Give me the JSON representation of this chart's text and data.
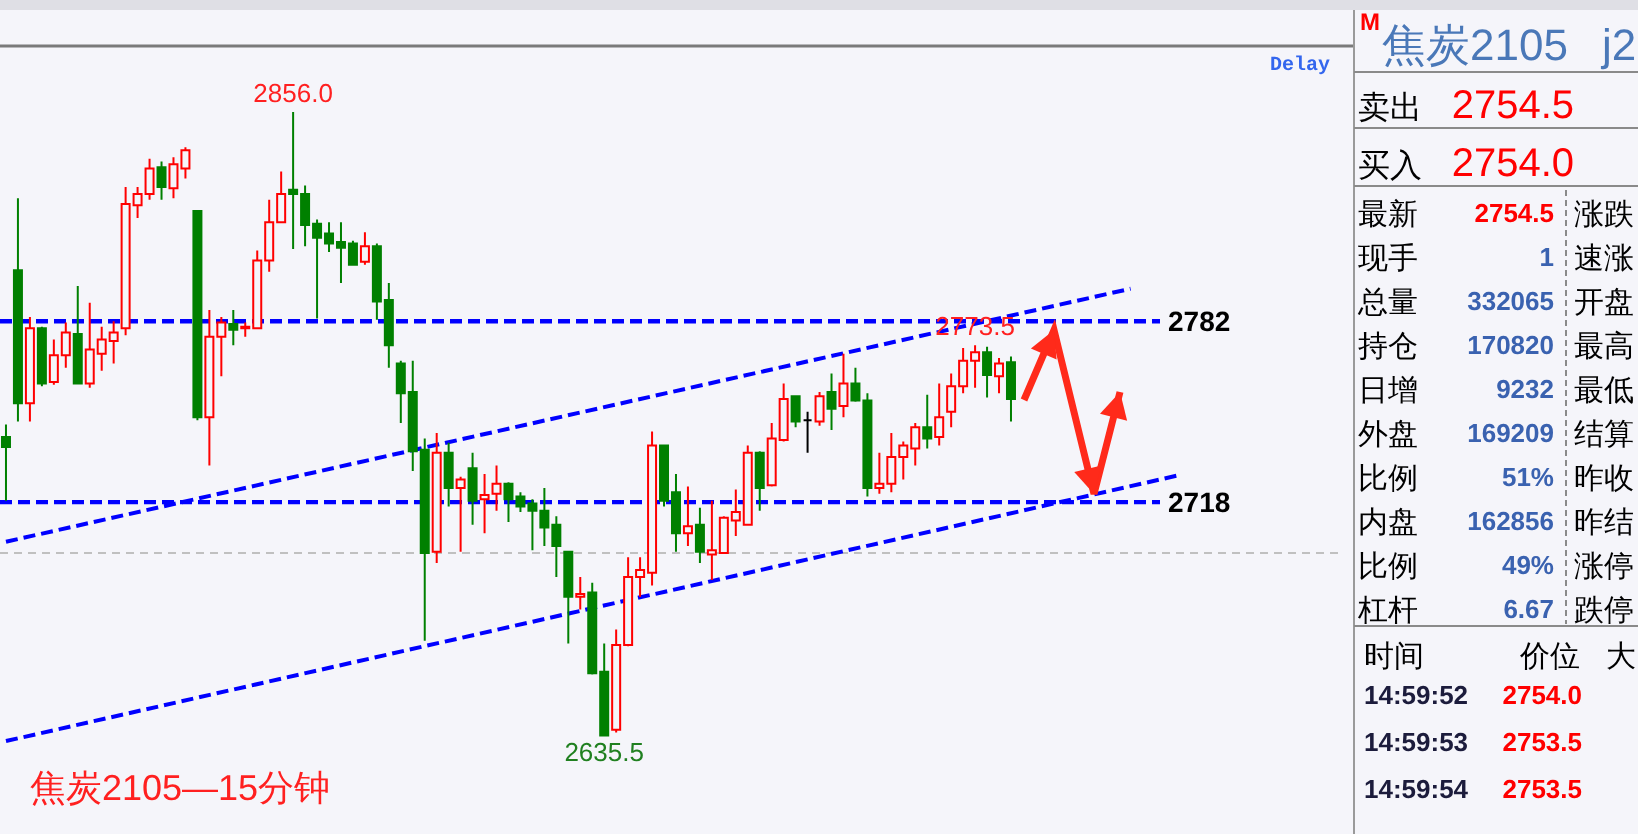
{
  "chart_data": [
    {
      "type": "candlestick",
      "title": "焦炭2105—15分钟",
      "categories": [
        null,
        null,
        null,
        null,
        null,
        null,
        null,
        null,
        null,
        null,
        null,
        null,
        null,
        null,
        null,
        null,
        null,
        null,
        null,
        null,
        null,
        null,
        null,
        null,
        null,
        null,
        null,
        null,
        null,
        null,
        null,
        null,
        null,
        null,
        null,
        null,
        null,
        null,
        null,
        null,
        null,
        null,
        null,
        null,
        null,
        null,
        null,
        null,
        null,
        null,
        null,
        null,
        null,
        null,
        null,
        null,
        null,
        null,
        null,
        null,
        null,
        null,
        null,
        null,
        null,
        null,
        null,
        null,
        null,
        null,
        null,
        null,
        null,
        null,
        null,
        null,
        null,
        null,
        null,
        null,
        null,
        null,
        null,
        null,
        null,
        null,
        null,
        null,
        null,
        null,
        null,
        null,
        null,
        null,
        null,
        null,
        null,
        null,
        null,
        null,
        null,
        null,
        null,
        null,
        null,
        null,
        null,
        null,
        null,
        null,
        null,
        null
      ],
      "ohlc": [
        [
          2741,
          2745.5,
          2718.5,
          2737.5
        ],
        [
          2800,
          2825.5,
          2746.5,
          2753
        ],
        [
          2753,
          2783.5,
          2746.5,
          2779.5
        ],
        [
          2779.5,
          2780,
          2759,
          2760
        ],
        [
          2760.5,
          2775.5,
          2759.5,
          2770
        ],
        [
          2770,
          2781.5,
          2765.5,
          2778
        ],
        [
          2777.5,
          2794.5,
          2760,
          2760
        ],
        [
          2760,
          2788.5,
          2758.5,
          2772
        ],
        [
          2770.5,
          2780,
          2764.5,
          2775.5
        ],
        [
          2775,
          2782,
          2767,
          2778
        ],
        [
          2779.5,
          2829.5,
          2777,
          2823.5
        ],
        [
          2823,
          2829.5,
          2818.5,
          2827
        ],
        [
          2827,
          2839.5,
          2825,
          2836
        ],
        [
          2836.5,
          2838.5,
          2825,
          2829.5
        ],
        [
          2829,
          2840,
          2825.5,
          2837.5
        ],
        [
          2836,
          2843.5,
          2832.5,
          2842.5
        ],
        [
          2821,
          2821,
          2747,
          2748
        ],
        [
          2748,
          2786,
          2731,
          2776.5
        ],
        [
          2776.5,
          2783.5,
          2762.5,
          2781.5
        ],
        [
          2781,
          2786,
          2773.5,
          2779
        ],
        [
          2779.5,
          2781.5,
          2776.5,
          2780
        ],
        [
          2779.5,
          2807,
          2779.5,
          2803.5
        ],
        [
          2803.5,
          2825,
          2799.5,
          2817
        ],
        [
          2817,
          2835,
          2817,
          2827
        ],
        [
          2828.5,
          2856,
          2807.5,
          2827
        ],
        [
          2827,
          2830,
          2808.5,
          2816
        ],
        [
          2816.5,
          2818,
          2783,
          2811.5
        ],
        [
          2813,
          2817,
          2806.5,
          2809.5
        ],
        [
          2810,
          2817,
          2795.5,
          2808
        ],
        [
          2809.5,
          2810.5,
          2802,
          2802
        ],
        [
          2803,
          2813.5,
          2802,
          2808.5
        ],
        [
          2808.5,
          2809.5,
          2782.5,
          2789
        ],
        [
          2789.5,
          2795.5,
          2765.5,
          2773.5
        ],
        [
          2767,
          2768,
          2746,
          2756.5
        ],
        [
          2757,
          2768,
          2729,
          2736
        ],
        [
          2736.5,
          2740.5,
          2669,
          2700
        ],
        [
          2700.5,
          2742.5,
          2696.5,
          2735.5
        ],
        [
          2735.5,
          2739,
          2716.5,
          2723
        ],
        [
          2723,
          2727,
          2700.5,
          2726
        ],
        [
          2730,
          2735.5,
          2710,
          2718.5
        ],
        [
          2719,
          2728,
          2707,
          2720.5
        ],
        [
          2721,
          2731,
          2715,
          2724.5
        ],
        [
          2724.5,
          2725,
          2711,
          2719
        ],
        [
          2720,
          2721.5,
          2714.5,
          2716.5
        ],
        [
          2717.5,
          2719,
          2701,
          2715
        ],
        [
          2715,
          2723,
          2702.5,
          2709
        ],
        [
          2710,
          2713,
          2691.5,
          2702.5
        ],
        [
          2700.5,
          2700.5,
          2668,
          2684.5
        ],
        [
          2684.5,
          2691.5,
          2680,
          2685.5
        ],
        [
          2686,
          2689.5,
          2657,
          2657.5
        ],
        [
          2658,
          2668,
          2635.5,
          2635.5
        ],
        [
          2637.5,
          2673,
          2636.5,
          2667.5
        ],
        [
          2667.5,
          2698.5,
          2667,
          2691.5
        ],
        [
          2691.5,
          2698.5,
          2684.5,
          2694
        ],
        [
          2693,
          2743,
          2688.5,
          2738
        ],
        [
          2738,
          2738,
          2716.5,
          2718.5
        ],
        [
          2721.5,
          2728,
          2700.5,
          2707
        ],
        [
          2707,
          2723.5,
          2702.5,
          2709.5
        ],
        [
          2710,
          2716,
          2696.5,
          2700.5
        ],
        [
          2699.5,
          2718.5,
          2690.5,
          2701
        ],
        [
          2700,
          2713,
          2700,
          2712.5
        ],
        [
          2711.5,
          2722.5,
          2706,
          2714.5
        ],
        [
          2710,
          2738,
          2710,
          2735.5
        ],
        [
          2735.5,
          2736,
          2715,
          2723
        ],
        [
          2724,
          2746,
          2723.5,
          2740.5
        ],
        [
          2740,
          2760,
          2739.5,
          2754.5
        ],
        [
          2755.5,
          2755.5,
          2744.5,
          2746.5
        ],
        [
          2747,
          2750,
          2735.5,
          2747
        ],
        [
          2746.5,
          2757,
          2745,
          2755.5
        ],
        [
          2757,
          2763.5,
          2743.5,
          2751
        ],
        [
          2752,
          2770.5,
          2748,
          2760
        ],
        [
          2760,
          2765.5,
          2753.5,
          2754
        ],
        [
          2754,
          2756.5,
          2720,
          2723
        ],
        [
          2723,
          2735.5,
          2721,
          2724.5
        ],
        [
          2724.5,
          2742.5,
          2721.5,
          2734
        ],
        [
          2734,
          2739.5,
          2726,
          2738
        ],
        [
          2737,
          2746,
          2731,
          2744.5
        ],
        [
          2744.5,
          2756,
          2737,
          2740.5
        ],
        [
          2741,
          2760,
          2738,
          2748
        ],
        [
          2750,
          2763.5,
          2744.5,
          2759
        ],
        [
          2759,
          2772.5,
          2756.5,
          2768
        ],
        [
          2768,
          2773.5,
          2758.5,
          2771
        ],
        [
          2771,
          2773,
          2755,
          2763
        ],
        [
          2762.5,
          2769,
          2756.5,
          2767
        ],
        [
          2767.5,
          2769.5,
          2746.5,
          2754.5
        ],
        null,
        null,
        null,
        null,
        null,
        null,
        null,
        null,
        null,
        null,
        null,
        null,
        null,
        null,
        null,
        null,
        null,
        null,
        null,
        null,
        null,
        null,
        null,
        null,
        null,
        null,
        null
      ],
      "colors": [
        "#008000",
        "#008000",
        "#ff0000",
        "#008000",
        "#ff0000",
        "#ff0000",
        "#008000",
        "#ff0000",
        "#ff0000",
        "#ff0000",
        "#ff0000",
        "#ff0000",
        "#ff0000",
        "#008000",
        "#ff0000",
        "#ff0000",
        "#008000",
        "#ff0000",
        "#ff0000",
        "#008000",
        "#ff0000",
        "#ff0000",
        "#ff0000",
        "#ff0000",
        "#008000",
        "#008000",
        "#008000",
        "#008000",
        "#008000",
        "#008000",
        "#ff0000",
        "#008000",
        "#008000",
        "#008000",
        "#008000",
        "#008000",
        "#ff0000",
        "#008000",
        "#ff0000",
        "#008000",
        "#ff0000",
        "#ff0000",
        "#008000",
        "#008000",
        "#008000",
        "#008000",
        "#008000",
        "#008000",
        "#ff0000",
        "#008000",
        "#008000",
        "#ff0000",
        "#ff0000",
        "#ff0000",
        "#ff0000",
        "#008000",
        "#008000",
        "#ff0000",
        "#008000",
        "#ff0000",
        "#ff0000",
        "#ff0000",
        "#ff0000",
        "#008000",
        "#ff0000",
        "#ff0000",
        "#008000",
        "#000000",
        "#ff0000",
        "#008000",
        "#ff0000",
        "#008000",
        "#008000",
        "#ff0000",
        "#ff0000",
        "#ff0000",
        "#ff0000",
        "#008000",
        "#ff0000",
        "#ff0000",
        "#ff0000",
        "#ff0000",
        "#008000",
        "#ff0000",
        "#008000",
        null,
        null,
        null,
        null,
        null,
        null,
        null,
        null,
        null,
        null,
        null,
        null,
        null,
        null,
        null,
        null,
        null,
        null,
        null,
        null,
        null,
        null,
        null,
        null,
        null,
        null,
        null
      ],
      "series": [
        {
          "type": "line",
          "color": "#0000ff",
          "line_style": "dashed",
          "values": [
            2704,
            null,
            null,
            null,
            null,
            null,
            null,
            null,
            null,
            null,
            null,
            null,
            null,
            null,
            null,
            null,
            null,
            null,
            null,
            null,
            null,
            null,
            null,
            null,
            null,
            null,
            null,
            null,
            null,
            null,
            null,
            null,
            null,
            null,
            null,
            null,
            null,
            null,
            null,
            null,
            null,
            null,
            null,
            null,
            null,
            null,
            null,
            null,
            null,
            null,
            null,
            null,
            null,
            null,
            null,
            null,
            null,
            null,
            null,
            null,
            null,
            null,
            null,
            null,
            null,
            null,
            null,
            null,
            null,
            null,
            null,
            null,
            null,
            null,
            null,
            null,
            null,
            null,
            null,
            null,
            null,
            null,
            null,
            null,
            null,
            null,
            null,
            null,
            null,
            null,
            null,
            null,
            null,
            null,
            2793.5,
            null,
            null,
            null,
            null,
            null,
            null,
            null,
            null,
            null,
            null,
            null,
            null,
            null,
            null,
            null,
            null,
            null
          ]
        },
        {
          "type": "line",
          "color": "#0000ff",
          "line_style": "dashed",
          "values": [
            2633.5,
            null,
            null,
            null,
            null,
            null,
            null,
            null,
            null,
            null,
            null,
            null,
            null,
            null,
            null,
            null,
            null,
            null,
            null,
            null,
            null,
            null,
            null,
            null,
            null,
            null,
            null,
            null,
            null,
            null,
            null,
            null,
            null,
            null,
            null,
            null,
            null,
            null,
            null,
            null,
            null,
            null,
            null,
            null,
            null,
            null,
            null,
            null,
            null,
            null,
            null,
            null,
            null,
            null,
            null,
            null,
            null,
            null,
            null,
            null,
            null,
            null,
            null,
            null,
            null,
            null,
            null,
            null,
            null,
            null,
            null,
            null,
            null,
            null,
            null,
            null,
            null,
            null,
            null,
            null,
            null,
            null,
            null,
            null,
            null,
            null,
            null,
            null,
            null,
            null,
            null,
            null,
            null,
            null,
            null,
            null,
            null,
            null,
            2727.5,
            null,
            null,
            null,
            null,
            null,
            null,
            null,
            null,
            null,
            null,
            null,
            null,
            null
          ]
        }
      ],
      "ref_lines": [
        {
          "axis": "y",
          "value": 2782,
          "label": "2782",
          "color": "#0000ff",
          "line_style": "dashed"
        },
        {
          "axis": "y",
          "value": 2718,
          "label": "2718",
          "color": "#0000ff",
          "line_style": "dashed"
        },
        {
          "axis": "y",
          "value": 2700,
          "color": "#c0c0c0",
          "line_style": "dashed"
        }
      ],
      "annotations": [
        {
          "text": "2856.0",
          "y": 2856
        },
        {
          "text": "2635.5",
          "y": 2635.5
        },
        {
          "text": "2773.5",
          "y": 2773.5
        },
        "Delay"
      ]
    },
    {
      "type": "other",
      "title": "焦炭2105",
      "annotations": [
        "M",
        "j2",
        "卖出",
        "2754.5",
        "买入",
        "2754.0",
        "最新",
        "2754.5",
        "现手",
        "1",
        "总量",
        "332065",
        "持仓",
        "170820",
        "日增",
        "9232",
        "外盘",
        "169209",
        "比例",
        "51%",
        "内盘",
        "162856",
        "比例",
        "49%",
        "杠杆",
        "6.67",
        "涨跌",
        "速涨",
        "开盘",
        "最高",
        "最低",
        "结算",
        "昨收",
        "昨结",
        "涨停",
        "跌停",
        "时间",
        "价位",
        "大",
        "14:59:52",
        "2754.0",
        "14:59:53",
        "2753.5",
        "14:59:54",
        "2753.5"
      ]
    }
  ]
}
